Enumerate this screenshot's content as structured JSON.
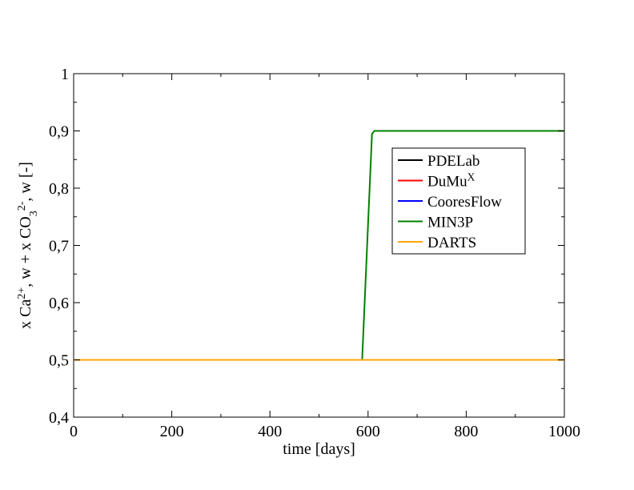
{
  "chart_data": {
    "type": "line",
    "xlabel": "time [days]",
    "ylabel": {
      "parts": [
        {
          "t": "x Ca",
          "s": "normal"
        },
        {
          "t": "2+",
          "s": "sup"
        },
        {
          "t": ", w + x CO",
          "s": "normal"
        },
        {
          "t": "3",
          "s": "sub"
        },
        {
          "t": "2-",
          "s": "sup"
        },
        {
          "t": ", w [-]",
          "s": "normal"
        }
      ]
    },
    "xlim": [
      0,
      1000
    ],
    "ylim": [
      0.4,
      1.0
    ],
    "xticks": [
      {
        "value": 0,
        "label": "0"
      },
      {
        "value": 200,
        "label": "200"
      },
      {
        "value": 400,
        "label": "400"
      },
      {
        "value": 600,
        "label": "600"
      },
      {
        "value": 800,
        "label": "800"
      },
      {
        "value": 1000,
        "label": "1000"
      }
    ],
    "yticks": [
      {
        "value": 0.4,
        "label": "0,4"
      },
      {
        "value": 0.5,
        "label": "0,5"
      },
      {
        "value": 0.6,
        "label": "0,6"
      },
      {
        "value": 0.7,
        "label": "0,7"
      },
      {
        "value": 0.8,
        "label": "0,8"
      },
      {
        "value": 0.9,
        "label": "0,9"
      },
      {
        "value": 1.0,
        "label": "1"
      }
    ],
    "grid": false,
    "legend_position": "upper-right",
    "series": [
      {
        "name": "PDELab",
        "legend_parts": [
          {
            "t": "PDELab",
            "s": "normal"
          }
        ],
        "color": "#000000",
        "points": [
          [
            0,
            0.5
          ],
          [
            1000,
            0.5
          ]
        ]
      },
      {
        "name": "DuMuX",
        "legend_parts": [
          {
            "t": "DuMu",
            "s": "normal"
          },
          {
            "t": "X",
            "s": "sup"
          }
        ],
        "color": "#ff0000",
        "points": [
          [
            0,
            0.5
          ],
          [
            1000,
            0.5
          ]
        ]
      },
      {
        "name": "CooresFlow",
        "legend_parts": [
          {
            "t": "CooresFlow",
            "s": "normal"
          }
        ],
        "color": "#0000ff",
        "points": [
          [
            0,
            0.5
          ],
          [
            1000,
            0.5
          ]
        ]
      },
      {
        "name": "MIN3P",
        "legend_parts": [
          {
            "t": "MIN3P",
            "s": "normal"
          }
        ],
        "color": "#008000",
        "points": [
          [
            0,
            0.5
          ],
          [
            588,
            0.5
          ],
          [
            608,
            0.895
          ],
          [
            613,
            0.9
          ],
          [
            1000,
            0.9
          ]
        ]
      },
      {
        "name": "DARTS",
        "legend_parts": [
          {
            "t": "DARTS",
            "s": "normal"
          }
        ],
        "color": "#ffa500",
        "points": [
          [
            0,
            0.5
          ],
          [
            1000,
            0.5
          ]
        ]
      }
    ]
  }
}
